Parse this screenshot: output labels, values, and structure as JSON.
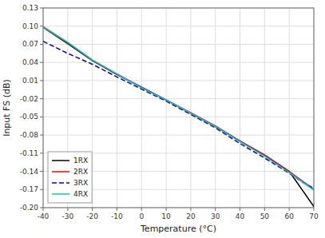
{
  "chart_data": {
    "type": "line",
    "title": "",
    "x_label": "Temperature (°C)",
    "y_label": "Input FS (dB)",
    "xlim": [
      -40,
      70
    ],
    "ylim": [
      -0.2,
      0.13
    ],
    "xticks": [
      -40,
      -30,
      -20,
      -10,
      0,
      10,
      20,
      30,
      40,
      50,
      60,
      70
    ],
    "yticks": [
      {
        "value": -0.2,
        "label": "-0.20"
      },
      -0.17,
      -0.14,
      -0.11,
      -0.08,
      -0.05,
      -0.02,
      0.01,
      0.04,
      0.07,
      {
        "value": 0.1,
        "label": "0.10"
      },
      0.13
    ],
    "grid": true,
    "legend": "lower left",
    "series": [
      {
        "name": "1RX",
        "color": "#000000",
        "line_style": "solid",
        "x": [
          -40,
          -30,
          -20,
          -10,
          0,
          10,
          20,
          30,
          40,
          50,
          60,
          70
        ],
        "values": [
          0.098,
          0.071,
          0.043,
          0.02,
          -0.001,
          -0.022,
          -0.044,
          -0.066,
          -0.09,
          -0.113,
          -0.14,
          -0.198
        ]
      },
      {
        "name": "2RX",
        "color": "#ff0000",
        "line_style": "solid",
        "x": [
          -40,
          -30,
          -20,
          -10,
          0,
          10,
          20,
          30,
          40,
          50,
          60,
          70
        ],
        "values": [
          0.099,
          0.073,
          0.044,
          0.021,
          -0.001,
          -0.022,
          -0.043,
          -0.065,
          -0.09,
          -0.113,
          -0.14,
          -0.17
        ]
      },
      {
        "name": "3RX",
        "color": "#0000dd",
        "line_style": "dashed",
        "x": [
          -40,
          -30,
          -20,
          -10,
          0,
          10,
          20,
          30,
          40,
          50,
          60,
          65,
          70
        ],
        "values": [
          0.075,
          0.055,
          0.037,
          0.016,
          -0.004,
          -0.024,
          -0.046,
          -0.068,
          -0.094,
          -0.118,
          -0.143,
          -0.157,
          -0.168
        ]
      },
      {
        "name": "4RX",
        "color": "#00cccc",
        "line_style": "solid",
        "x": [
          -40,
          -30,
          -20,
          -10,
          0,
          10,
          20,
          30,
          40,
          50,
          60,
          70
        ],
        "values": [
          0.098,
          0.073,
          0.044,
          0.021,
          -0.002,
          -0.022,
          -0.044,
          -0.066,
          -0.091,
          -0.115,
          -0.142,
          -0.171
        ]
      }
    ]
  }
}
